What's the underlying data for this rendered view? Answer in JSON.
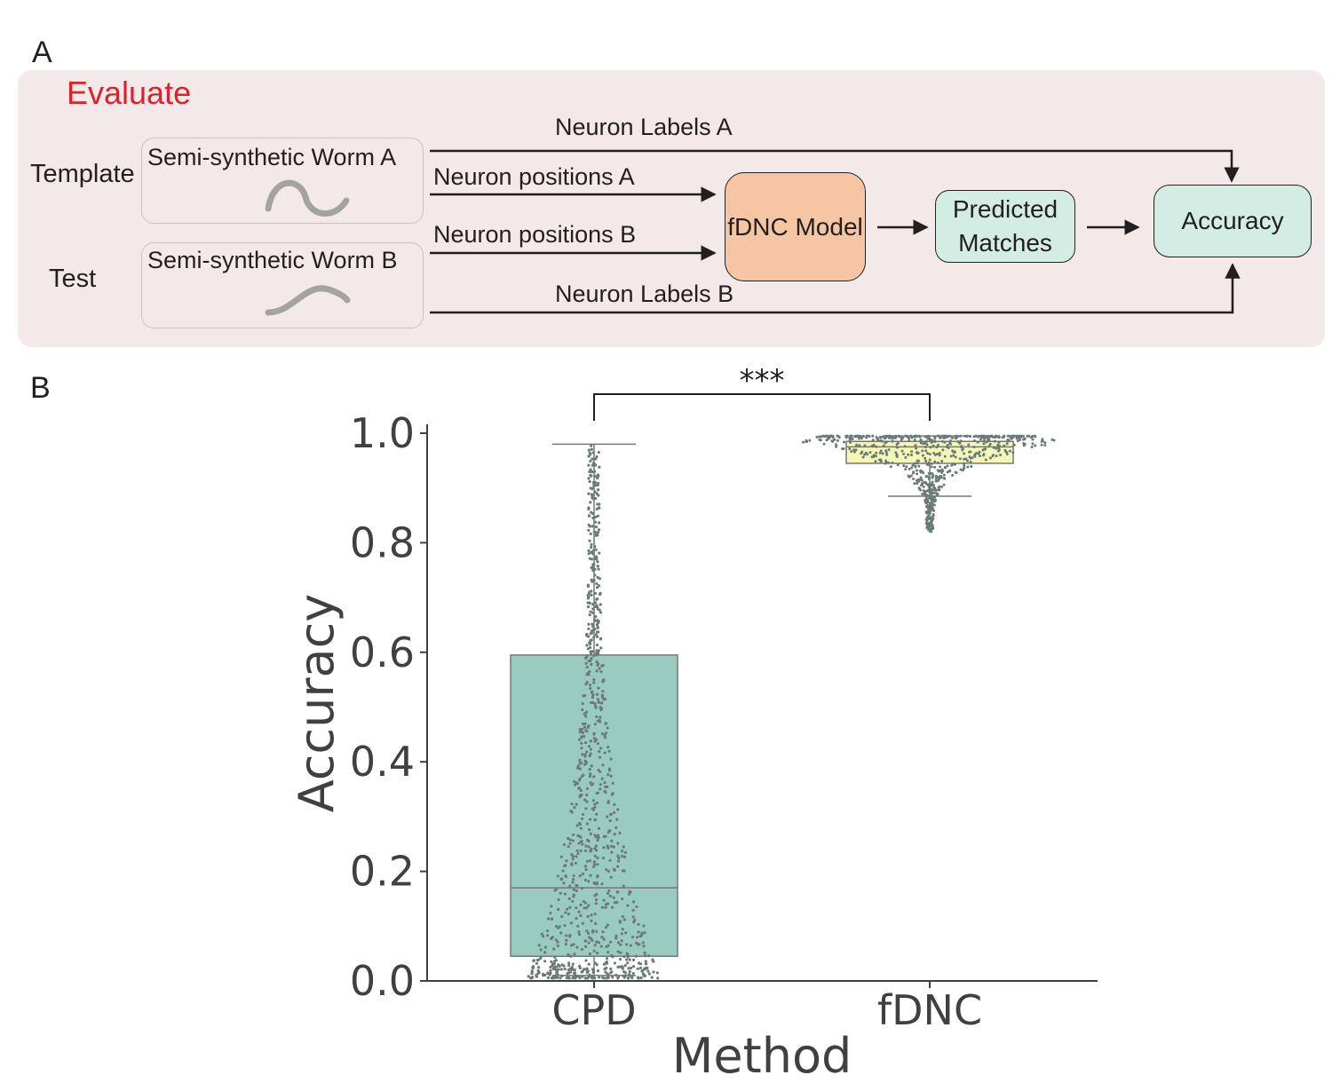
{
  "panel_a": {
    "letter": "A",
    "title": "Evaluate",
    "template_label": "Template",
    "test_label": "Test",
    "worm_a_label": "Semi-synthetic Worm A",
    "worm_b_label": "Semi-synthetic Worm B",
    "labels_a": "Neuron Labels A",
    "positions_a": "Neuron positions A",
    "positions_b": "Neuron positions B",
    "labels_b": "Neuron Labels B",
    "model_label": "fDNC Model",
    "predicted_line1": "Predicted",
    "predicted_line2": "Matches",
    "accuracy_label": "Accuracy",
    "colors": {
      "panel_bg": "#f3e9e9",
      "title": "#e0202a",
      "model": "#f6c6a4",
      "output": "#d3ece4"
    }
  },
  "panel_b": {
    "letter": "B"
  },
  "chart_data": {
    "type": "box",
    "xlabel": "Method",
    "ylabel": "Accuracy",
    "ylim": [
      0,
      1.0
    ],
    "yticks": [
      "0.0",
      "0.2",
      "0.4",
      "0.6",
      "0.8",
      "1.0"
    ],
    "categories": [
      "CPD",
      "fDNC"
    ],
    "boxes": [
      {
        "name": "CPD",
        "color": "#99cbc1",
        "whisker_low": 0.01,
        "q1": 0.045,
        "median": 0.17,
        "q3": 0.595,
        "whisker_high": 0.98
      },
      {
        "name": "fDNC",
        "color": "#f4f7b8",
        "whisker_low": 0.885,
        "q1": 0.945,
        "median": 0.975,
        "q3": 0.985,
        "whisker_high": 0.995
      }
    ],
    "significance": {
      "label": "***",
      "between": [
        "CPD",
        "fDNC"
      ]
    },
    "points_color": "#6b7a78",
    "grid": false
  }
}
